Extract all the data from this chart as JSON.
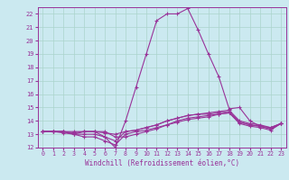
{
  "bg_color": "#cbe9f0",
  "grid_color": "#aad4cc",
  "line_color": "#993399",
  "spine_color": "#993399",
  "xlabel": "Windchill (Refroidissement éolien,°C)",
  "xlim": [
    -0.5,
    23.5
  ],
  "ylim": [
    12,
    22.5
  ],
  "yticks": [
    12,
    13,
    14,
    15,
    16,
    17,
    18,
    19,
    20,
    21,
    22
  ],
  "xticks": [
    0,
    1,
    2,
    3,
    4,
    5,
    6,
    7,
    8,
    9,
    10,
    11,
    12,
    13,
    14,
    15,
    16,
    17,
    18,
    19,
    20,
    21,
    22,
    23
  ],
  "figsize": [
    3.2,
    2.0
  ],
  "dpi": 100,
  "curves": [
    {
      "x": [
        0,
        1,
        2,
        3,
        4,
        5,
        6,
        7,
        8,
        9,
        10,
        11,
        12,
        13,
        14,
        15,
        16,
        17,
        18,
        19,
        20,
        21,
        22,
        23
      ],
      "y": [
        13.2,
        13.2,
        13.2,
        13.0,
        13.2,
        13.2,
        12.8,
        12.0,
        14.0,
        16.5,
        19.0,
        21.5,
        22.0,
        22.0,
        22.4,
        20.8,
        19.0,
        17.3,
        14.9,
        15.0,
        14.0,
        13.6,
        13.5,
        13.8
      ]
    },
    {
      "x": [
        0,
        1,
        2,
        3,
        4,
        5,
        6,
        7,
        8,
        9,
        10,
        11,
        12,
        13,
        14,
        15,
        16,
        17,
        18,
        19,
        20,
        21,
        22,
        23
      ],
      "y": [
        13.2,
        13.2,
        13.2,
        13.1,
        13.2,
        13.2,
        13.1,
        13.0,
        13.2,
        13.3,
        13.5,
        13.7,
        14.0,
        14.2,
        14.4,
        14.5,
        14.6,
        14.7,
        14.8,
        14.0,
        13.8,
        13.7,
        13.5,
        13.8
      ]
    },
    {
      "x": [
        0,
        1,
        2,
        3,
        4,
        5,
        6,
        7,
        8,
        9,
        10,
        11,
        12,
        13,
        14,
        15,
        16,
        17,
        18,
        19,
        20,
        21,
        22,
        23
      ],
      "y": [
        13.2,
        13.2,
        13.2,
        13.0,
        12.8,
        12.8,
        12.5,
        12.2,
        13.0,
        13.2,
        13.3,
        13.5,
        13.7,
        14.0,
        14.2,
        14.3,
        14.4,
        14.5,
        14.6,
        13.8,
        13.6,
        13.5,
        13.3,
        13.8
      ]
    },
    {
      "x": [
        0,
        1,
        2,
        3,
        4,
        5,
        6,
        7,
        8,
        9,
        10,
        11,
        12,
        13,
        14,
        15,
        16,
        17,
        18,
        19,
        20,
        21,
        22,
        23
      ],
      "y": [
        13.2,
        13.2,
        13.2,
        13.2,
        13.2,
        13.2,
        13.2,
        12.8,
        12.8,
        13.0,
        13.2,
        13.4,
        13.7,
        13.9,
        14.1,
        14.2,
        14.3,
        14.5,
        14.6,
        13.9,
        13.7,
        13.6,
        13.4,
        13.8
      ]
    },
    {
      "x": [
        0,
        1,
        2,
        3,
        4,
        5,
        6,
        7,
        8,
        9,
        10,
        11,
        12,
        13,
        14,
        15,
        16,
        17,
        18,
        19,
        20,
        21,
        22,
        23
      ],
      "y": [
        13.2,
        13.2,
        13.1,
        13.0,
        13.0,
        13.0,
        12.8,
        12.5,
        13.2,
        13.3,
        13.5,
        13.7,
        14.0,
        14.2,
        14.4,
        14.5,
        14.5,
        14.6,
        14.7,
        13.9,
        13.7,
        13.6,
        13.4,
        13.8
      ]
    }
  ]
}
